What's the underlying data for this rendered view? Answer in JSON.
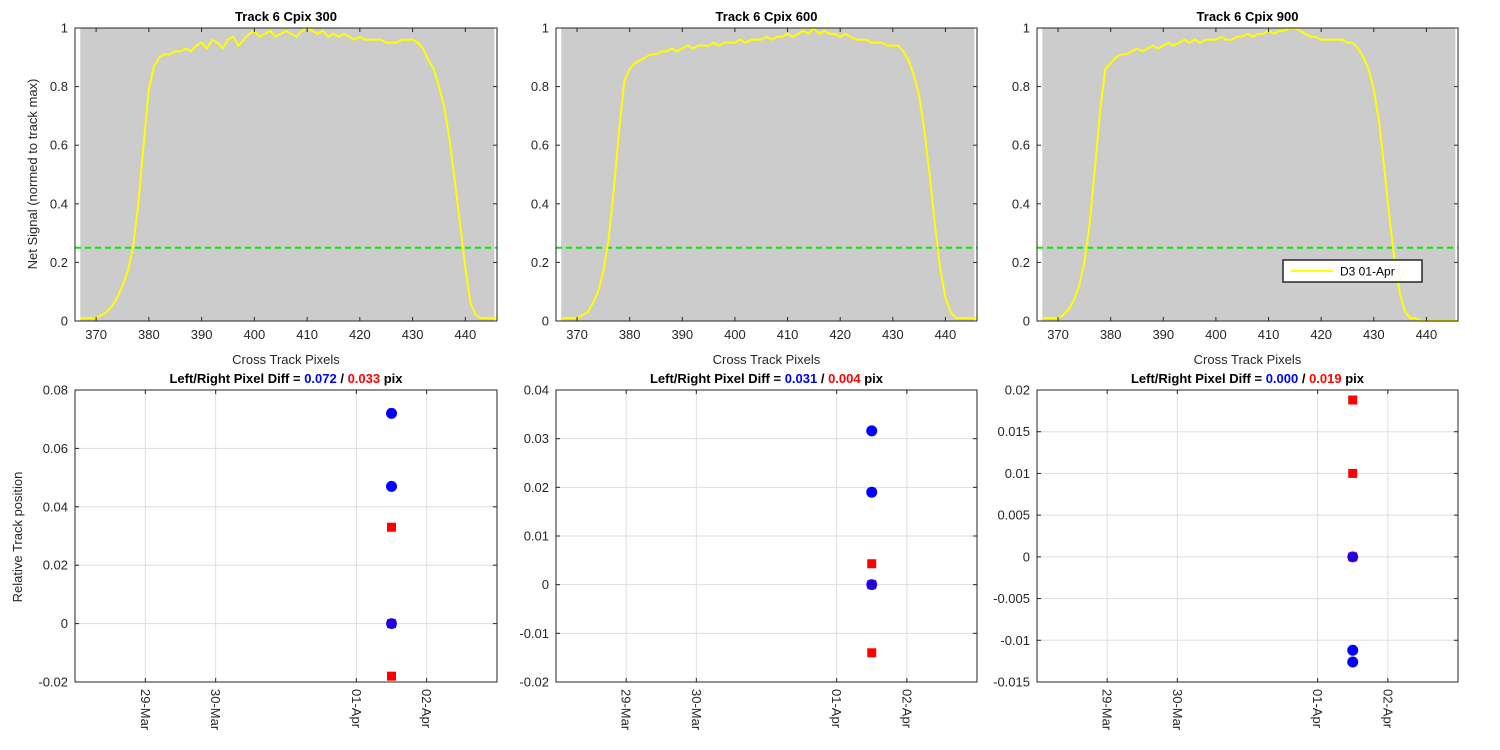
{
  "figure": {
    "legend_label": "D3 01-Apr",
    "ylabel_top": "Net Signal (normed to track max)",
    "ylabel_bottom": "Relative Track position",
    "xlabel_top": "Cross Track Pixels",
    "colors": {
      "profile": "#ffff00",
      "threshold": "#00ee00",
      "panel_bg": "#cccccc",
      "left": "#0000ff",
      "right": "#ff0000"
    }
  },
  "chart_data": [
    {
      "type": "line",
      "title": "Track 6  Cpix 300",
      "xlabel": "Cross Track Pixels",
      "ylabel": "Net Signal (normed to track max)",
      "xlim": [
        366,
        446
      ],
      "ylim": [
        0,
        1
      ],
      "xticks": [
        370,
        380,
        390,
        400,
        410,
        420,
        430,
        440
      ],
      "yticks": [
        0,
        0.2,
        0.4,
        0.6,
        0.8,
        1
      ],
      "ytick_labels": [
        "0",
        "0.2",
        "0.4",
        "0.6",
        "0.8",
        "1"
      ],
      "threshold": 0.25,
      "series": [
        {
          "name": "D3 01-Apr",
          "x": [
            367,
            368,
            369,
            370,
            371,
            372,
            373,
            374,
            375,
            376,
            377,
            378,
            379,
            380,
            381,
            382,
            383,
            384,
            385,
            386,
            387,
            388,
            389,
            390,
            391,
            392,
            393,
            394,
            395,
            396,
            397,
            398,
            399,
            400,
            401,
            402,
            403,
            404,
            405,
            406,
            407,
            408,
            409,
            410,
            411,
            412,
            413,
            414,
            415,
            416,
            417,
            418,
            419,
            420,
            421,
            422,
            423,
            424,
            425,
            426,
            427,
            428,
            429,
            430,
            431,
            432,
            433,
            434,
            435,
            436,
            437,
            438,
            439,
            440,
            441,
            442,
            443,
            444,
            445,
            446
          ],
          "y": [
            0.01,
            0.01,
            0.01,
            0.01,
            0.02,
            0.03,
            0.05,
            0.08,
            0.12,
            0.17,
            0.25,
            0.4,
            0.6,
            0.79,
            0.87,
            0.9,
            0.91,
            0.91,
            0.92,
            0.92,
            0.93,
            0.92,
            0.94,
            0.95,
            0.93,
            0.96,
            0.95,
            0.93,
            0.96,
            0.97,
            0.94,
            0.96,
            0.98,
            0.99,
            0.97,
            0.98,
            0.99,
            0.97,
            0.98,
            0.99,
            0.98,
            0.97,
            0.99,
            1.0,
            0.99,
            0.98,
            0.99,
            0.97,
            0.98,
            0.97,
            0.98,
            0.97,
            0.96,
            0.97,
            0.96,
            0.96,
            0.96,
            0.96,
            0.95,
            0.95,
            0.95,
            0.96,
            0.96,
            0.96,
            0.95,
            0.93,
            0.89,
            0.86,
            0.8,
            0.73,
            0.62,
            0.48,
            0.33,
            0.18,
            0.06,
            0.02,
            0.01,
            0.01,
            0.01,
            0.01
          ]
        }
      ]
    },
    {
      "type": "line",
      "title": "Track 6  Cpix 600",
      "xlabel": "Cross Track Pixels",
      "ylabel": "",
      "xlim": [
        366,
        446
      ],
      "ylim": [
        0,
        1
      ],
      "xticks": [
        370,
        380,
        390,
        400,
        410,
        420,
        430,
        440
      ],
      "yticks": [
        0,
        0.2,
        0.4,
        0.6,
        0.8,
        1
      ],
      "ytick_labels": [
        "0",
        "0.2",
        "0.4",
        "0.6",
        "0.8",
        "1"
      ],
      "threshold": 0.25,
      "series": [
        {
          "name": "D3 01-Apr",
          "x": [
            367,
            368,
            369,
            370,
            371,
            372,
            373,
            374,
            375,
            376,
            377,
            378,
            379,
            380,
            381,
            382,
            383,
            384,
            385,
            386,
            387,
            388,
            389,
            390,
            391,
            392,
            393,
            394,
            395,
            396,
            397,
            398,
            399,
            400,
            401,
            402,
            403,
            404,
            405,
            406,
            407,
            408,
            409,
            410,
            411,
            412,
            413,
            414,
            415,
            416,
            417,
            418,
            419,
            420,
            421,
            422,
            423,
            424,
            425,
            426,
            427,
            428,
            429,
            430,
            431,
            432,
            433,
            434,
            435,
            436,
            437,
            438,
            439,
            440,
            441,
            442,
            443,
            444,
            445,
            446
          ],
          "y": [
            0.01,
            0.01,
            0.01,
            0.01,
            0.02,
            0.03,
            0.06,
            0.1,
            0.17,
            0.28,
            0.45,
            0.65,
            0.82,
            0.86,
            0.88,
            0.89,
            0.9,
            0.91,
            0.91,
            0.92,
            0.92,
            0.93,
            0.92,
            0.93,
            0.94,
            0.93,
            0.94,
            0.94,
            0.94,
            0.95,
            0.94,
            0.95,
            0.95,
            0.95,
            0.96,
            0.95,
            0.96,
            0.96,
            0.96,
            0.97,
            0.96,
            0.97,
            0.97,
            0.98,
            0.97,
            0.98,
            0.99,
            0.98,
            1.0,
            0.98,
            0.99,
            0.98,
            0.98,
            0.97,
            0.98,
            0.97,
            0.96,
            0.96,
            0.96,
            0.95,
            0.95,
            0.95,
            0.94,
            0.94,
            0.94,
            0.92,
            0.89,
            0.84,
            0.77,
            0.65,
            0.5,
            0.33,
            0.18,
            0.08,
            0.03,
            0.01,
            0.01,
            0.01,
            0.01,
            0.01
          ]
        }
      ]
    },
    {
      "type": "line",
      "title": "Track 6  Cpix 900",
      "xlabel": "Cross Track Pixels",
      "ylabel": "",
      "xlim": [
        366,
        446
      ],
      "ylim": [
        0,
        1
      ],
      "xticks": [
        370,
        380,
        390,
        400,
        410,
        420,
        430,
        440
      ],
      "yticks": [
        0,
        0.2,
        0.4,
        0.6,
        0.8,
        1
      ],
      "ytick_labels": [
        "0",
        "0.2",
        "0.4",
        "0.6",
        "0.8",
        "1"
      ],
      "threshold": 0.25,
      "legend": "bottom-right",
      "series": [
        {
          "name": "D3 01-Apr",
          "x": [
            367,
            368,
            369,
            370,
            371,
            372,
            373,
            374,
            375,
            376,
            377,
            378,
            379,
            380,
            381,
            382,
            383,
            384,
            385,
            386,
            387,
            388,
            389,
            390,
            391,
            392,
            393,
            394,
            395,
            396,
            397,
            398,
            399,
            400,
            401,
            402,
            403,
            404,
            405,
            406,
            407,
            408,
            409,
            410,
            411,
            412,
            413,
            414,
            415,
            416,
            417,
            418,
            419,
            420,
            421,
            422,
            423,
            424,
            425,
            426,
            427,
            428,
            429,
            430,
            431,
            432,
            433,
            434,
            435,
            436,
            437,
            438,
            439,
            440,
            441,
            442,
            443,
            444,
            445,
            446
          ],
          "y": [
            0.01,
            0.01,
            0.01,
            0.01,
            0.02,
            0.04,
            0.07,
            0.12,
            0.2,
            0.33,
            0.52,
            0.72,
            0.86,
            0.88,
            0.9,
            0.91,
            0.91,
            0.92,
            0.93,
            0.92,
            0.93,
            0.94,
            0.93,
            0.94,
            0.95,
            0.94,
            0.95,
            0.96,
            0.95,
            0.96,
            0.95,
            0.96,
            0.96,
            0.96,
            0.97,
            0.96,
            0.96,
            0.97,
            0.97,
            0.98,
            0.97,
            0.98,
            0.98,
            0.99,
            0.98,
            0.99,
            0.99,
            1.0,
            1.0,
            0.99,
            0.98,
            0.97,
            0.97,
            0.96,
            0.96,
            0.96,
            0.96,
            0.96,
            0.95,
            0.95,
            0.93,
            0.9,
            0.86,
            0.79,
            0.68,
            0.52,
            0.35,
            0.2,
            0.09,
            0.03,
            0.01,
            0.01,
            0.0,
            0.0,
            0.0,
            0.0,
            0.0,
            0.0,
            0.0,
            0.0
          ]
        }
      ]
    },
    {
      "type": "scatter",
      "title": "Left/Right Pixel Diff = 0.072 / 0.033 pix",
      "title_parts": {
        "prefix": "Left/Right Pixel Diff = ",
        "left": "0.072",
        "sep": " / ",
        "right": "0.033",
        "suffix": " pix"
      },
      "xlabel": "",
      "ylabel": "Relative Track position",
      "xlim": [
        "2022-03-28T00:00",
        "2022-04-03T00:00"
      ],
      "ylim": [
        -0.02,
        0.08
      ],
      "xticks": [
        "2022-03-29",
        "2022-03-30",
        "2022-04-01",
        "2022-04-02"
      ],
      "xtick_labels": [
        "29-Mar",
        "30-Mar",
        "01-Apr",
        "02-Apr"
      ],
      "yticks": [
        -0.02,
        0,
        0.02,
        0.04,
        0.06,
        0.08
      ],
      "ytick_labels": [
        "-0.02",
        "0",
        "0.02",
        "0.04",
        "0.06",
        "0.08"
      ],
      "grid": true,
      "series": [
        {
          "name": "Left",
          "color": "#0000ff",
          "marker": "circle",
          "x": [
            "2022-04-01T12:00",
            "2022-04-01T12:00",
            "2022-04-01T12:00"
          ],
          "y": [
            0.072,
            0.047,
            0.0
          ]
        },
        {
          "name": "Right",
          "color": "#ff0000",
          "marker": "square",
          "x": [
            "2022-04-01T12:00",
            "2022-04-01T12:00",
            "2022-04-01T12:00"
          ],
          "y": [
            0.033,
            0.0,
            -0.018
          ]
        }
      ]
    },
    {
      "type": "scatter",
      "title": "Left/Right Pixel Diff = 0.031 / 0.004 pix",
      "title_parts": {
        "prefix": "Left/Right Pixel Diff = ",
        "left": "0.031",
        "sep": " / ",
        "right": "0.004",
        "suffix": " pix"
      },
      "xlabel": "",
      "ylabel": "",
      "xlim": [
        "2022-03-28T00:00",
        "2022-04-03T00:00"
      ],
      "ylim": [
        -0.02,
        0.04
      ],
      "xticks": [
        "2022-03-29",
        "2022-03-30",
        "2022-04-01",
        "2022-04-02"
      ],
      "xtick_labels": [
        "29-Mar",
        "30-Mar",
        "01-Apr",
        "02-Apr"
      ],
      "yticks": [
        -0.02,
        -0.01,
        0,
        0.01,
        0.02,
        0.03,
        0.04
      ],
      "ytick_labels": [
        "-0.02",
        "-0.01",
        "0",
        "0.01",
        "0.02",
        "0.03",
        "0.04"
      ],
      "grid": true,
      "series": [
        {
          "name": "Left",
          "color": "#0000ff",
          "marker": "circle",
          "x": [
            "2022-04-01T12:00",
            "2022-04-01T12:00",
            "2022-04-01T12:00"
          ],
          "y": [
            0.0316,
            0.019,
            0.0
          ]
        },
        {
          "name": "Right",
          "color": "#ff0000",
          "marker": "square",
          "x": [
            "2022-04-01T12:00",
            "2022-04-01T12:00",
            "2022-04-01T12:00"
          ],
          "y": [
            0.0043,
            0.0,
            -0.014
          ]
        }
      ]
    },
    {
      "type": "scatter",
      "title": "Left/Right Pixel Diff = 0.000 / 0.019 pix",
      "title_parts": {
        "prefix": "Left/Right Pixel Diff = ",
        "left": "0.000",
        "sep": " / ",
        "right": "0.019",
        "suffix": " pix"
      },
      "xlabel": "",
      "ylabel": "",
      "xlim": [
        "2022-03-28T00:00",
        "2022-04-03T00:00"
      ],
      "ylim": [
        -0.015,
        0.02
      ],
      "xticks": [
        "2022-03-29",
        "2022-03-30",
        "2022-04-01",
        "2022-04-02"
      ],
      "xtick_labels": [
        "29-Mar",
        "30-Mar",
        "01-Apr",
        "02-Apr"
      ],
      "yticks": [
        -0.015,
        -0.01,
        -0.005,
        0,
        0.005,
        0.01,
        0.015,
        0.02
      ],
      "ytick_labels": [
        "-0.015",
        "-0.01",
        "-0.005",
        "0",
        "0.005",
        "0.01",
        "0.015",
        "0.02"
      ],
      "grid": true,
      "series": [
        {
          "name": "Left",
          "color": "#0000ff",
          "marker": "circle",
          "x": [
            "2022-04-01T12:00",
            "2022-04-01T12:00",
            "2022-04-01T12:00"
          ],
          "y": [
            0.0,
            -0.0112,
            -0.0126
          ]
        },
        {
          "name": "Right",
          "color": "#ff0000",
          "marker": "square",
          "x": [
            "2022-04-01T12:00",
            "2022-04-01T12:00",
            "2022-04-01T12:00"
          ],
          "y": [
            0.0188,
            0.01,
            0.0
          ]
        }
      ]
    }
  ]
}
